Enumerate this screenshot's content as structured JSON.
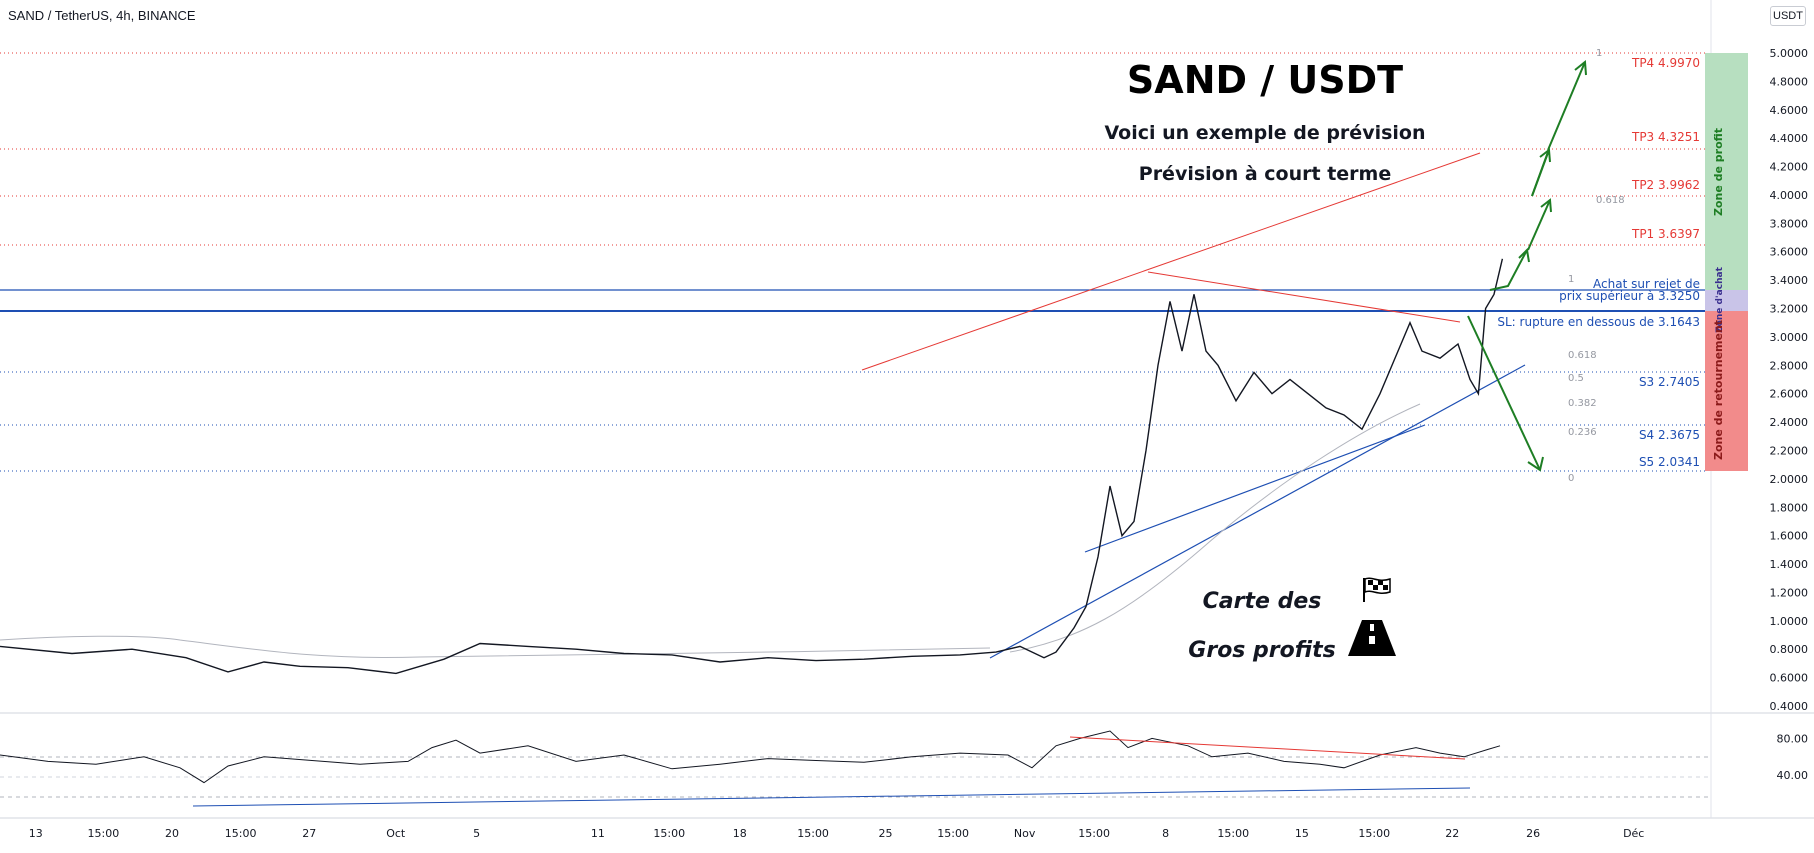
{
  "header": {
    "symbol_line": "SAND / TetherUS, 4h, BINANCE",
    "currency_badge": "USDT"
  },
  "overlay": {
    "title": "SAND / USDT",
    "subtitle1": "Voici un exemple de prévision",
    "subtitle2": "Prévision à court terme",
    "logo_line1": "Carte des",
    "logo_line2": "Gros profits",
    "flag_icon": "checkered-flag-icon",
    "road_icon": "road-icon"
  },
  "levels": {
    "tp4": "TP4 4.9970",
    "tp3": "TP3 4.3251",
    "tp2": "TP2 3.9962",
    "tp1": "TP1 3.6397",
    "buy_line1": "Achat sur rejet de",
    "buy_line2": "prix supérieur à  3.3250",
    "sl": "SL: rupture en dessous de  3.1643",
    "s3": "S3 2.7405",
    "s4": "S4 2.3675",
    "s5": "S5 2.0341"
  },
  "zones": {
    "profit": "Zone de profit",
    "buy": "Zone d'achat",
    "reversal": "Zone de retournement"
  },
  "fib": {
    "upper_1": "1",
    "upper_0618": "0.618",
    "lower_1": "1",
    "lower_0618": "0.618",
    "lower_05": "0.5",
    "lower_0382": "0.382",
    "lower_0236": "0.236",
    "lower_0": "0"
  },
  "colors": {
    "tp": "#e53935",
    "support": "#1e4fb3",
    "profit_zone": "#b7dfc0",
    "buy_zone": "#c9c4e8",
    "reversal_zone": "#f28b8b",
    "candle_up": "#131722",
    "arrow": "#1e7e24"
  },
  "chart_data": {
    "type": "candlestick",
    "price_axis": {
      "min": 0.4,
      "max": 5.0,
      "ticks": [
        "5.0000",
        "4.8000",
        "4.6000",
        "4.4000",
        "4.2000",
        "4.0000",
        "3.8000",
        "3.6000",
        "3.4000",
        "3.2000",
        "3.0000",
        "2.8000",
        "2.6000",
        "2.4000",
        "2.2000",
        "2.0000",
        "1.8000",
        "1.6000",
        "1.4000",
        "1.2000",
        "1.0000",
        "0.8000",
        "0.6000",
        "0.4000"
      ]
    },
    "time_axis": [
      "13",
      "15:00",
      "20",
      "15:00",
      "27",
      "Oct",
      "5",
      "11",
      "15:00",
      "18",
      "15:00",
      "25",
      "15:00",
      "Nov",
      "15:00",
      "8",
      "15:00",
      "15",
      "15:00",
      "22",
      "26",
      "Déc"
    ],
    "close_path": [
      [
        0,
        0.82
      ],
      [
        60,
        0.77
      ],
      [
        110,
        0.8
      ],
      [
        155,
        0.74
      ],
      [
        190,
        0.64
      ],
      [
        220,
        0.71
      ],
      [
        250,
        0.68
      ],
      [
        290,
        0.67
      ],
      [
        330,
        0.63
      ],
      [
        370,
        0.73
      ],
      [
        400,
        0.84
      ],
      [
        440,
        0.82
      ],
      [
        480,
        0.8
      ],
      [
        520,
        0.77
      ],
      [
        560,
        0.76
      ],
      [
        600,
        0.71
      ],
      [
        640,
        0.74
      ],
      [
        680,
        0.72
      ],
      [
        720,
        0.73
      ],
      [
        760,
        0.75
      ],
      [
        800,
        0.76
      ],
      [
        830,
        0.78
      ],
      [
        850,
        0.82
      ],
      [
        870,
        0.74
      ],
      [
        880,
        0.78
      ],
      [
        895,
        0.95
      ],
      [
        905,
        1.1
      ],
      [
        915,
        1.45
      ],
      [
        925,
        1.95
      ],
      [
        935,
        1.6
      ],
      [
        945,
        1.7
      ],
      [
        955,
        2.2
      ],
      [
        965,
        2.8
      ],
      [
        975,
        3.25
      ],
      [
        985,
        2.9
      ],
      [
        995,
        3.3
      ],
      [
        1005,
        2.9
      ],
      [
        1015,
        2.8
      ],
      [
        1030,
        2.55
      ],
      [
        1045,
        2.75
      ],
      [
        1060,
        2.6
      ],
      [
        1075,
        2.7
      ],
      [
        1090,
        2.6
      ],
      [
        1105,
        2.5
      ],
      [
        1120,
        2.45
      ],
      [
        1135,
        2.35
      ],
      [
        1150,
        2.6
      ],
      [
        1165,
        2.9
      ],
      [
        1175,
        3.1
      ],
      [
        1185,
        2.9
      ],
      [
        1200,
        2.85
      ],
      [
        1215,
        2.95
      ],
      [
        1225,
        2.7
      ],
      [
        1232,
        2.6
      ],
      [
        1238,
        3.2
      ],
      [
        1245,
        3.3
      ],
      [
        1252,
        3.55
      ]
    ],
    "rsi_axis": {
      "ticks": [
        "80.00",
        "40.00"
      ]
    },
    "rsi_path": [
      [
        0,
        62
      ],
      [
        40,
        55
      ],
      [
        80,
        52
      ],
      [
        120,
        60
      ],
      [
        150,
        48
      ],
      [
        170,
        32
      ],
      [
        190,
        50
      ],
      [
        220,
        60
      ],
      [
        260,
        56
      ],
      [
        300,
        52
      ],
      [
        340,
        55
      ],
      [
        360,
        70
      ],
      [
        380,
        78
      ],
      [
        400,
        64
      ],
      [
        440,
        72
      ],
      [
        480,
        55
      ],
      [
        520,
        62
      ],
      [
        560,
        47
      ],
      [
        600,
        52
      ],
      [
        640,
        58
      ],
      [
        680,
        56
      ],
      [
        720,
        54
      ],
      [
        760,
        60
      ],
      [
        800,
        64
      ],
      [
        840,
        62
      ],
      [
        860,
        48
      ],
      [
        880,
        72
      ],
      [
        900,
        80
      ],
      [
        925,
        88
      ],
      [
        940,
        70
      ],
      [
        960,
        80
      ],
      [
        990,
        72
      ],
      [
        1010,
        60
      ],
      [
        1040,
        64
      ],
      [
        1070,
        55
      ],
      [
        1100,
        52
      ],
      [
        1120,
        48
      ],
      [
        1150,
        62
      ],
      [
        1180,
        70
      ],
      [
        1200,
        64
      ],
      [
        1220,
        60
      ],
      [
        1240,
        68
      ],
      [
        1250,
        72
      ]
    ],
    "levels": {
      "TP4": 4.997,
      "TP3": 4.3251,
      "TP2": 3.9962,
      "TP1": 3.6397,
      "buy": 3.325,
      "SL": 3.1643,
      "S3": 2.7405,
      "S4": 2.3675,
      "S5": 2.0341
    }
  }
}
